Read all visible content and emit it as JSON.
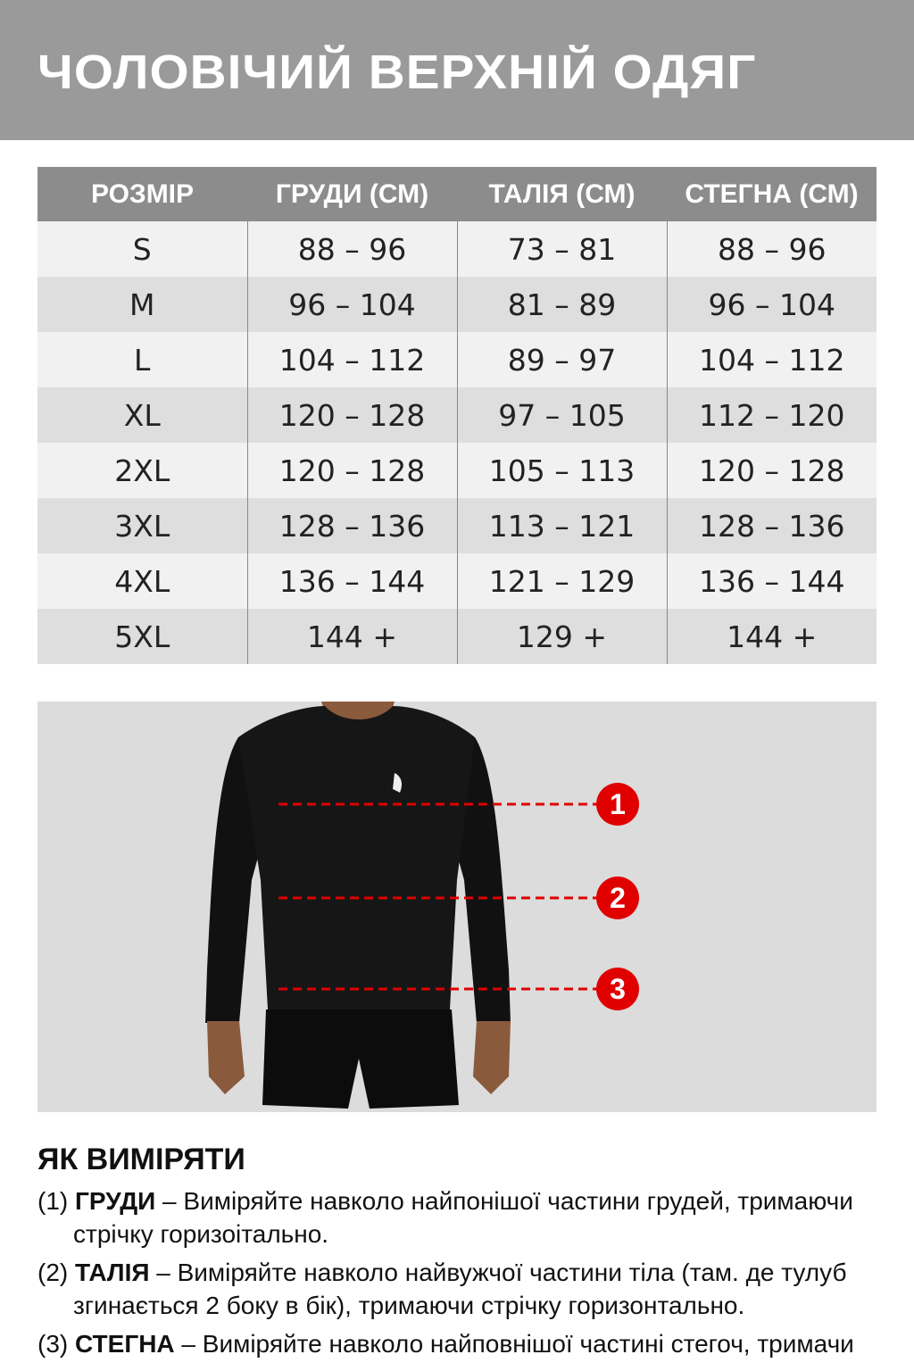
{
  "title": "ЧОЛОВІЧИЙ ВЕРХНІЙ ОДЯГ",
  "table": {
    "headers": [
      "РОЗМІР",
      "ГРУДИ (СМ)",
      "ТАЛІЯ (СМ)",
      "СТЕГНА (СМ)"
    ],
    "rows": [
      [
        "S",
        "88 – 96",
        "73 – 81",
        "88 – 96"
      ],
      [
        "M",
        "96 – 104",
        "81 – 89",
        "96 – 104"
      ],
      [
        "L",
        "104 – 112",
        "89 – 97",
        "104 – 112"
      ],
      [
        "XL",
        "120 – 128",
        "97 – 105",
        "112 – 120"
      ],
      [
        "2XL",
        "120 – 128",
        "105 – 113",
        "120 – 128"
      ],
      [
        "3XL",
        "128 – 136",
        "113 – 121",
        "128 – 136"
      ],
      [
        "4XL",
        "136 – 144",
        "121 – 129",
        "136 – 144"
      ],
      [
        "5XL",
        "144 +",
        "129 +",
        "144 +"
      ]
    ]
  },
  "figure": {
    "markers": [
      "1",
      "2",
      "3"
    ],
    "marker_color": "#e00000"
  },
  "howto": {
    "title": "ЯК ВИМІРЯТИ",
    "items": [
      {
        "num": "(1)",
        "term": "ГРУДИ",
        "text": " – Виміряйте навколо найпонішої частини грудей, тримаючи стрічку горизоітально."
      },
      {
        "num": "(2)",
        "term": "ТАЛІЯ",
        "text": " – Виміряйте навколо найвужчої частини тіла (там. де тулуб згинається 2 боку в бік), тримаючи стрічку горизонтально."
      },
      {
        "num": "(3)",
        "term": "СТЕГНА",
        "text": " – Виміряйте навколо найповнішої частині стегоч, тримачи"
      }
    ]
  }
}
